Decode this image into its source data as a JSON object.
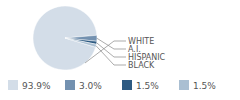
{
  "chart_data": {
    "type": "pie",
    "categories": [
      "WHITE",
      "A.I.",
      "HISPANIC",
      "BLACK"
    ],
    "values": [
      93.9,
      3.0,
      1.5,
      1.5
    ],
    "value_labels": [
      "93.9%",
      "3.0%",
      "1.5%",
      "1.5%"
    ],
    "colors": [
      "#d3dde8",
      "#7391b0",
      "#2d5a82",
      "#aabfd2"
    ],
    "data_labels": true
  }
}
